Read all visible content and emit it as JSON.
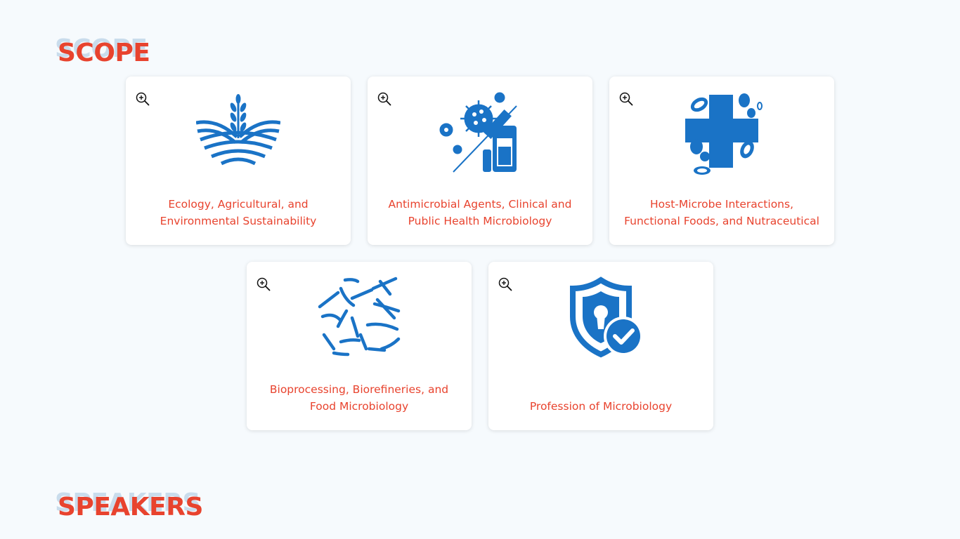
{
  "sections": {
    "scope": "SCOPE",
    "speakers": "SPEAKERS"
  },
  "colors": {
    "accent": "#e8432e",
    "icon_blue": "#1a73c6",
    "title_shadow": "#c9dcec"
  },
  "cards": [
    {
      "icon": "agriculture-field-icon",
      "label": "Ecology, Agricultural, and Environmental Sustainability"
    },
    {
      "icon": "virus-vaccine-icon",
      "label": "Antimicrobial Agents, Clinical and Public Health Microbiology"
    },
    {
      "icon": "medical-cross-microbes-icon",
      "label": "Host-Microbe Interactions, Functional Foods, and Nutraceutical"
    },
    {
      "icon": "bacteria-rods-icon",
      "label": "Bioprocessing, Biorefineries, and Food Microbiology"
    },
    {
      "icon": "security-shield-check-icon",
      "label": "Profession of Microbiology"
    }
  ]
}
